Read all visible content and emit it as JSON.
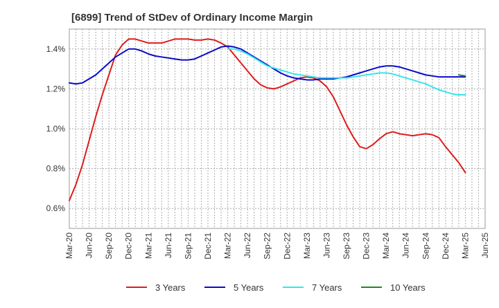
{
  "chart_data": {
    "type": "line",
    "title": "[6899]  Trend of StDev of Ordinary Income Margin",
    "xlabel": "",
    "ylabel": "",
    "x_ticks": [
      "Mar-20",
      "Jun-20",
      "Sep-20",
      "Dec-20",
      "Mar-21",
      "Jun-21",
      "Sep-21",
      "Dec-21",
      "Mar-22",
      "Jun-22",
      "Sep-22",
      "Dec-22",
      "Mar-23",
      "Jun-23",
      "Sep-23",
      "Dec-23",
      "Mar-24",
      "Jun-24",
      "Sep-24",
      "Dec-24",
      "Mar-25",
      "Jun-25"
    ],
    "y_ticks": [
      "0.6%",
      "0.8%",
      "1.0%",
      "1.2%",
      "1.4%"
    ],
    "y_tick_values": [
      0.6,
      0.8,
      1.0,
      1.2,
      1.4
    ],
    "ylim": [
      0.5,
      1.5
    ],
    "xlim": [
      "Mar-20",
      "Jun-25"
    ],
    "grid": true,
    "legend_position": "bottom",
    "series": [
      {
        "name": "3 Years",
        "color": "#dd1c1c",
        "x": [
          "Mar-20",
          "Apr-20",
          "May-20",
          "Jun-20",
          "Jul-20",
          "Aug-20",
          "Sep-20",
          "Oct-20",
          "Nov-20",
          "Dec-20",
          "Jan-21",
          "Feb-21",
          "Mar-21",
          "Apr-21",
          "May-21",
          "Jun-21",
          "Jul-21",
          "Aug-21",
          "Sep-21",
          "Oct-21",
          "Nov-21",
          "Dec-21",
          "Jan-22",
          "Feb-22",
          "Mar-22",
          "Apr-22",
          "May-22",
          "Jun-22",
          "Jul-22",
          "Aug-22",
          "Sep-22",
          "Oct-22",
          "Nov-22",
          "Dec-22",
          "Jan-23",
          "Feb-23",
          "Mar-23",
          "Apr-23",
          "May-23",
          "Jun-23",
          "Jul-23",
          "Aug-23",
          "Sep-23",
          "Oct-23",
          "Nov-23",
          "Dec-23",
          "Jan-24",
          "Feb-24",
          "Mar-24",
          "Apr-24",
          "May-24",
          "Jun-24",
          "Jul-24",
          "Aug-24",
          "Sep-24",
          "Oct-24",
          "Nov-24",
          "Dec-24",
          "Jan-25",
          "Feb-25",
          "Mar-25"
        ],
        "values": [
          0.64,
          0.72,
          0.82,
          0.94,
          1.06,
          1.17,
          1.27,
          1.37,
          1.42,
          1.45,
          1.45,
          1.44,
          1.43,
          1.43,
          1.43,
          1.44,
          1.45,
          1.45,
          1.45,
          1.445,
          1.445,
          1.45,
          1.445,
          1.43,
          1.41,
          1.37,
          1.33,
          1.29,
          1.25,
          1.22,
          1.205,
          1.2,
          1.21,
          1.225,
          1.24,
          1.255,
          1.26,
          1.255,
          1.24,
          1.21,
          1.16,
          1.09,
          1.02,
          0.96,
          0.91,
          0.9,
          0.92,
          0.95,
          0.975,
          0.985,
          0.975,
          0.97,
          0.965,
          0.97,
          0.975,
          0.97,
          0.955,
          0.91,
          0.87,
          0.83,
          0.78
        ]
      },
      {
        "name": "5 Years",
        "color": "#0a0ac8",
        "x": [
          "Mar-20",
          "Apr-20",
          "May-20",
          "Jun-20",
          "Jul-20",
          "Aug-20",
          "Sep-20",
          "Oct-20",
          "Nov-20",
          "Dec-20",
          "Jan-21",
          "Feb-21",
          "Mar-21",
          "Apr-21",
          "May-21",
          "Jun-21",
          "Jul-21",
          "Aug-21",
          "Sep-21",
          "Oct-21",
          "Nov-21",
          "Dec-21",
          "Jan-22",
          "Feb-22",
          "Mar-22",
          "Apr-22",
          "May-22",
          "Jun-22",
          "Jul-22",
          "Aug-22",
          "Sep-22",
          "Oct-22",
          "Nov-22",
          "Dec-22",
          "Jan-23",
          "Feb-23",
          "Mar-23",
          "Apr-23",
          "May-23",
          "Jun-23",
          "Jul-23",
          "Aug-23",
          "Sep-23",
          "Oct-23",
          "Nov-23",
          "Dec-23",
          "Jan-24",
          "Feb-24",
          "Mar-24",
          "Apr-24",
          "May-24",
          "Jun-24",
          "Jul-24",
          "Aug-24",
          "Sep-24",
          "Oct-24",
          "Nov-24",
          "Dec-24",
          "Jan-25",
          "Feb-25",
          "Mar-25"
        ],
        "values": [
          1.23,
          1.225,
          1.23,
          1.25,
          1.27,
          1.3,
          1.33,
          1.36,
          1.38,
          1.4,
          1.4,
          1.39,
          1.375,
          1.365,
          1.36,
          1.355,
          1.35,
          1.345,
          1.345,
          1.35,
          1.365,
          1.38,
          1.395,
          1.41,
          1.415,
          1.41,
          1.4,
          1.38,
          1.36,
          1.34,
          1.32,
          1.3,
          1.28,
          1.265,
          1.255,
          1.25,
          1.245,
          1.245,
          1.25,
          1.25,
          1.25,
          1.255,
          1.26,
          1.27,
          1.28,
          1.29,
          1.3,
          1.31,
          1.315,
          1.315,
          1.31,
          1.3,
          1.29,
          1.28,
          1.27,
          1.265,
          1.26,
          1.26,
          1.26,
          1.26,
          1.26
        ]
      },
      {
        "name": "7 Years",
        "color": "#33e6ee",
        "x": [
          "Mar-22",
          "Apr-22",
          "May-22",
          "Jun-22",
          "Jul-22",
          "Aug-22",
          "Sep-22",
          "Oct-22",
          "Nov-22",
          "Dec-22",
          "Jan-23",
          "Feb-23",
          "Mar-23",
          "Apr-23",
          "May-23",
          "Jun-23",
          "Jul-23",
          "Aug-23",
          "Sep-23",
          "Oct-23",
          "Nov-23",
          "Dec-23",
          "Jan-24",
          "Feb-24",
          "Mar-24",
          "Apr-24",
          "May-24",
          "Jun-24",
          "Jul-24",
          "Aug-24",
          "Sep-24",
          "Oct-24",
          "Nov-24",
          "Dec-24",
          "Jan-25",
          "Feb-25",
          "Mar-25"
        ],
        "values": [
          1.4,
          1.4,
          1.39,
          1.375,
          1.355,
          1.335,
          1.315,
          1.305,
          1.295,
          1.285,
          1.275,
          1.27,
          1.265,
          1.26,
          1.255,
          1.255,
          1.255,
          1.255,
          1.255,
          1.26,
          1.265,
          1.27,
          1.275,
          1.28,
          1.28,
          1.275,
          1.265,
          1.255,
          1.245,
          1.235,
          1.225,
          1.21,
          1.195,
          1.185,
          1.175,
          1.17,
          1.17
        ]
      },
      {
        "name": "10 Years",
        "color": "#1e8a1e",
        "x": [
          "Feb-25",
          "Mar-25"
        ],
        "values": [
          1.27,
          1.265
        ]
      }
    ]
  }
}
